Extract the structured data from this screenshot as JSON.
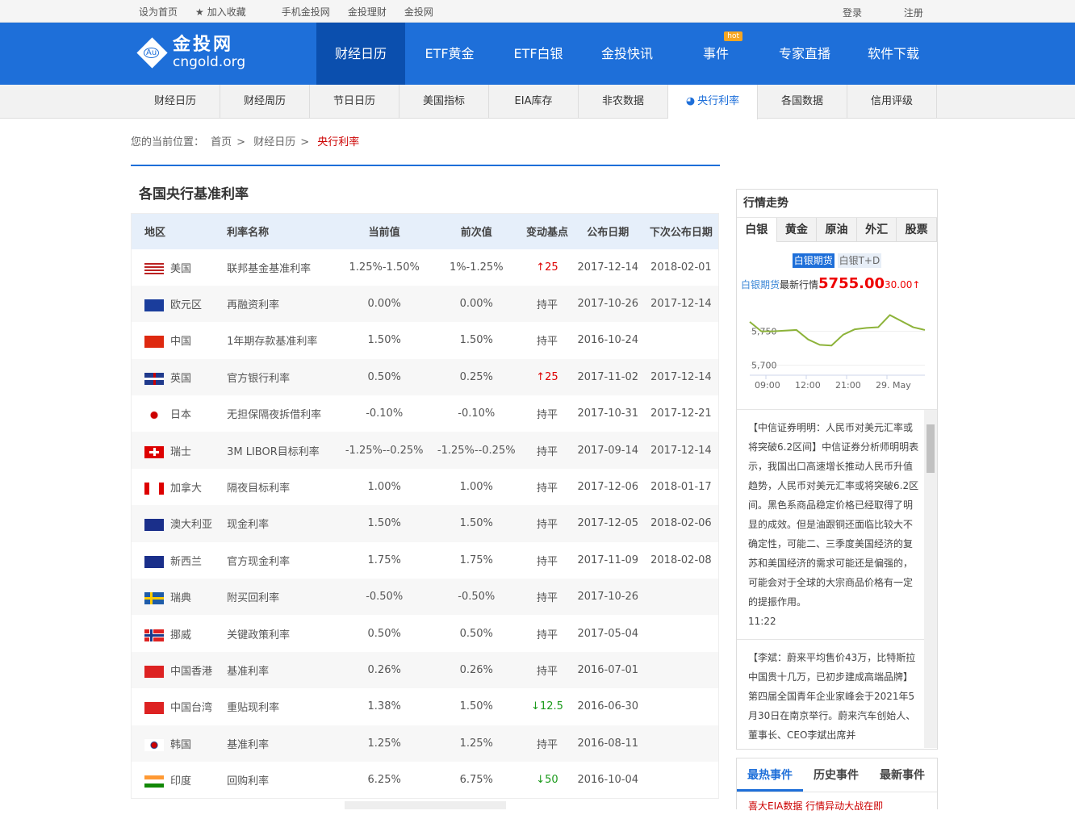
{
  "topbar": {
    "links": [
      "设为首页",
      "加入收藏",
      "手机金投网",
      "金投理财",
      "金投网"
    ],
    "login": "登录",
    "register": "注册"
  },
  "logo": {
    "cn": "金投网",
    "en": "cngold.org",
    "badge": "Au"
  },
  "nav": {
    "items": [
      "财经日历",
      "ETF黄金",
      "ETF白银",
      "金投快讯",
      "事件",
      "专家直播",
      "软件下载"
    ],
    "hot": "hot"
  },
  "subnav": {
    "items": [
      "财经日历",
      "财经周历",
      "节日日历",
      "美国指标",
      "EIA库存",
      "非农数据",
      "央行利率",
      "各国数据",
      "信用评级"
    ]
  },
  "breadcrumb": {
    "prefix": "您的当前位置：",
    "items": [
      "首页",
      "财经日历"
    ],
    "current": "央行利率",
    "sep": ">"
  },
  "section_title": "各国央行基准利率",
  "table": {
    "headers": [
      "地区",
      "利率名称",
      "当前值",
      "前次值",
      "变动基点",
      "公布日期",
      "下次公布日期"
    ],
    "rows": [
      [
        "美国",
        "联邦基金基准利率",
        "1.25%-1.50%",
        "1%-1.25%",
        "↑25",
        "2017-12-14",
        "2018-02-01"
      ],
      [
        "欧元区",
        "再融资利率",
        "0.00%",
        "0.00%",
        "持平",
        "2017-10-26",
        "2017-12-14"
      ],
      [
        "中国",
        "1年期存款基准利率",
        "1.50%",
        "1.50%",
        "持平",
        "2016-10-24",
        ""
      ],
      [
        "英国",
        "官方银行利率",
        "0.50%",
        "0.25%",
        "↑25",
        "2017-11-02",
        "2017-12-14"
      ],
      [
        "日本",
        "无担保隔夜拆借利率",
        "-0.10%",
        "-0.10%",
        "持平",
        "2017-10-31",
        "2017-12-21"
      ],
      [
        "瑞士",
        "3M LIBOR目标利率",
        "-1.25%--0.25%",
        "-1.25%--0.25%",
        "持平",
        "2017-09-14",
        "2017-12-14"
      ],
      [
        "加拿大",
        "隔夜目标利率",
        "1.00%",
        "1.00%",
        "持平",
        "2017-12-06",
        "2018-01-17"
      ],
      [
        "澳大利亚",
        "现金利率",
        "1.50%",
        "1.50%",
        "持平",
        "2017-12-05",
        "2018-02-06"
      ],
      [
        "新西兰",
        "官方现金利率",
        "1.75%",
        "1.75%",
        "持平",
        "2017-11-09",
        "2018-02-08"
      ],
      [
        "瑞典",
        "附买回利率",
        "-0.50%",
        "-0.50%",
        "持平",
        "2017-10-26",
        ""
      ],
      [
        "挪威",
        "关键政策利率",
        "0.50%",
        "0.50%",
        "持平",
        "2017-05-04",
        ""
      ],
      [
        "中国香港",
        "基准利率",
        "0.26%",
        "0.26%",
        "持平",
        "2016-07-01",
        ""
      ],
      [
        "中国台湾",
        "重贴现利率",
        "1.38%",
        "1.50%",
        "↓12.5",
        "2016-06-30",
        ""
      ],
      [
        "韩国",
        "基准利率",
        "1.25%",
        "1.25%",
        "持平",
        "2016-08-11",
        ""
      ],
      [
        "印度",
        "回购利率",
        "6.25%",
        "6.75%",
        "↓50",
        "2016-10-04",
        ""
      ]
    ]
  },
  "flags": [
    "us",
    "eu",
    "cn",
    "gb",
    "jp",
    "ch",
    "ca",
    "au",
    "nz",
    "se",
    "no",
    "hk",
    "tw",
    "kr",
    "in"
  ],
  "market": {
    "title": "行情走势",
    "tabs": [
      "白银",
      "黄金",
      "原油",
      "外汇",
      "股票"
    ],
    "subtabs": [
      "白银期货",
      "白银T+D"
    ],
    "quote_name": "白银期货",
    "quote_label": "最新行情",
    "price": "5755.00",
    "change": "30.00↑"
  },
  "chart_data": {
    "type": "line",
    "x_ticks": [
      "09:00",
      "12:00",
      "21:00",
      "29. May"
    ],
    "y_ticks": [
      5700,
      5750
    ],
    "ylim": [
      5690,
      5790
    ],
    "values": [
      5764,
      5750,
      5750,
      5751,
      5752,
      5738,
      5730,
      5729,
      5745,
      5753,
      5755,
      5756,
      5774,
      5765,
      5756,
      5752
    ],
    "color": "#8db33a"
  },
  "news": [
    {
      "text": "【中信证券明明：人民币对美元汇率或将突破6.2区间】中信证券分析师明明表示，我国出口高速增长推动人民币升值趋势，人民币对美元汇率或将突破6.2区间。黑色系商品稳定价格已经取得了明显的成效。但是油跟铜还面临比较大不确定性，可能二、三季度美国经济的复苏和美国经济的需求可能还是偏强的，可能会对于全球的大宗商品价格有一定的提振作用。",
      "time": "11:22"
    },
    {
      "text": "【李斌：蔚来平均售价43万，比特斯拉中国贵十几万，已初步建成高端品牌】第四届全国青年企业家峰会于2021年5月30日在南京举行。蔚来汽车创始人、董事长、CEO李斌出席并",
      "time": ""
    }
  ],
  "events": {
    "tabs": [
      "最热事件",
      "历史事件",
      "最新事件"
    ],
    "first": "喜大EIA数据 行情异动大战在即"
  }
}
